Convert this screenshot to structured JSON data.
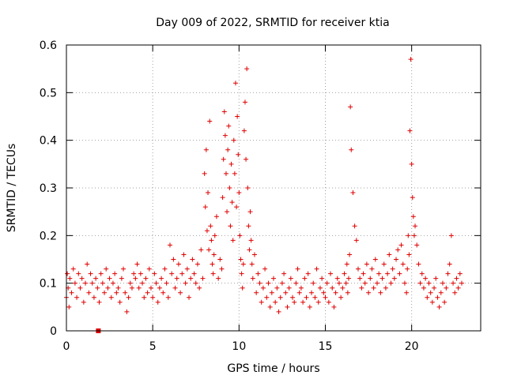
{
  "chart_data": {
    "type": "scatter",
    "title": "Day 009 of 2022, SRMTID for receiver ktia",
    "xlabel": "GPS time / hours",
    "ylabel": "SRMTID / TECUs",
    "xlim": [
      0,
      24
    ],
    "ylim": [
      0,
      0.6
    ],
    "xticks": [
      0,
      5,
      10,
      15,
      20
    ],
    "xtick_labels": [
      "0",
      "5",
      "10",
      "15",
      "20"
    ],
    "yticks": [
      0,
      0.1,
      0.2,
      0.3,
      0.4,
      0.5,
      0.6
    ],
    "ytick_labels": [
      "0",
      "0.1",
      "0.2",
      "0.3",
      "0.4",
      "0.5",
      "0.6"
    ],
    "grid": true,
    "marker": "plus",
    "color": "#e00000",
    "series": [
      {
        "name": "SRMTID",
        "x": [
          0.0,
          0.05,
          0.1,
          0.15,
          0.2,
          0.3,
          0.4,
          0.5,
          0.6,
          0.7,
          0.8,
          0.9,
          1.0,
          1.1,
          1.2,
          1.3,
          1.4,
          1.5,
          1.6,
          1.7,
          1.8,
          1.9,
          2.0,
          2.1,
          2.2,
          2.3,
          2.4,
          2.5,
          2.6,
          2.7,
          2.8,
          2.9,
          3.0,
          3.1,
          3.2,
          3.3,
          3.4,
          3.5,
          3.6,
          3.7,
          3.8,
          3.9,
          4.0,
          4.1,
          4.2,
          4.3,
          4.4,
          4.5,
          4.6,
          4.7,
          4.8,
          4.9,
          5.0,
          5.1,
          5.2,
          5.3,
          5.4,
          5.5,
          5.6,
          5.7,
          5.8,
          5.9,
          6.0,
          6.1,
          6.2,
          6.3,
          6.4,
          6.5,
          6.6,
          6.7,
          6.8,
          6.9,
          7.0,
          7.1,
          7.2,
          7.3,
          7.4,
          7.5,
          7.6,
          7.7,
          7.8,
          7.9,
          8.0,
          8.05,
          8.1,
          8.15,
          8.2,
          8.25,
          8.3,
          8.35,
          8.4,
          8.45,
          8.5,
          8.55,
          8.6,
          8.7,
          8.8,
          8.9,
          9.0,
          9.05,
          9.1,
          9.15,
          9.2,
          9.25,
          9.3,
          9.35,
          9.4,
          9.45,
          9.5,
          9.55,
          9.6,
          9.65,
          9.7,
          9.75,
          9.8,
          9.85,
          9.9,
          9.95,
          10.0,
          10.05,
          10.1,
          10.15,
          10.2,
          10.25,
          10.3,
          10.35,
          10.4,
          10.45,
          10.5,
          10.55,
          10.6,
          10.65,
          10.7,
          10.75,
          10.8,
          10.9,
          11.0,
          11.1,
          11.2,
          11.3,
          11.4,
          11.5,
          11.6,
          11.7,
          11.8,
          11.9,
          12.0,
          12.1,
          12.2,
          12.3,
          12.4,
          12.5,
          12.6,
          12.7,
          12.8,
          12.9,
          13.0,
          13.1,
          13.2,
          13.3,
          13.4,
          13.5,
          13.6,
          13.7,
          13.8,
          13.9,
          14.0,
          14.1,
          14.2,
          14.3,
          14.4,
          14.5,
          14.6,
          14.7,
          14.8,
          14.9,
          15.0,
          15.1,
          15.2,
          15.3,
          15.4,
          15.5,
          15.6,
          15.7,
          15.8,
          15.9,
          16.0,
          16.1,
          16.2,
          16.25,
          16.3,
          16.35,
          16.4,
          16.45,
          16.5,
          16.6,
          16.7,
          16.8,
          16.9,
          17.0,
          17.1,
          17.2,
          17.3,
          17.4,
          17.5,
          17.6,
          17.7,
          17.8,
          17.9,
          18.0,
          18.1,
          18.2,
          18.3,
          18.4,
          18.5,
          18.6,
          18.7,
          18.8,
          18.9,
          19.0,
          19.1,
          19.2,
          19.3,
          19.4,
          19.5,
          19.6,
          19.7,
          19.75,
          19.8,
          19.85,
          19.9,
          19.95,
          20.0,
          20.05,
          20.1,
          20.15,
          20.2,
          20.3,
          20.4,
          20.5,
          20.6,
          20.7,
          20.8,
          20.9,
          21.0,
          21.1,
          21.2,
          21.3,
          21.4,
          21.5,
          21.6,
          21.7,
          21.8,
          21.9,
          22.0,
          22.1,
          22.2,
          22.3,
          22.4,
          22.5,
          22.6,
          22.7,
          22.8,
          22.9
        ],
        "y": [
          0.07,
          0.12,
          0.09,
          0.05,
          0.11,
          0.08,
          0.13,
          0.1,
          0.07,
          0.12,
          0.09,
          0.11,
          0.06,
          0.1,
          0.14,
          0.08,
          0.12,
          0.1,
          0.07,
          0.11,
          0.09,
          0.06,
          0.12,
          0.1,
          0.08,
          0.13,
          0.09,
          0.11,
          0.07,
          0.1,
          0.12,
          0.08,
          0.09,
          0.06,
          0.11,
          0.13,
          0.08,
          0.04,
          0.07,
          0.1,
          0.09,
          0.12,
          0.11,
          0.14,
          0.09,
          0.12,
          0.1,
          0.07,
          0.11,
          0.08,
          0.13,
          0.09,
          0.07,
          0.12,
          0.1,
          0.06,
          0.09,
          0.11,
          0.08,
          0.13,
          0.1,
          0.07,
          0.18,
          0.12,
          0.15,
          0.09,
          0.11,
          0.14,
          0.08,
          0.12,
          0.16,
          0.1,
          0.13,
          0.07,
          0.11,
          0.15,
          0.12,
          0.1,
          0.14,
          0.09,
          0.17,
          0.11,
          0.33,
          0.26,
          0.38,
          0.21,
          0.29,
          0.17,
          0.44,
          0.22,
          0.19,
          0.14,
          0.12,
          0.16,
          0.2,
          0.24,
          0.11,
          0.15,
          0.13,
          0.28,
          0.36,
          0.46,
          0.41,
          0.33,
          0.25,
          0.38,
          0.43,
          0.3,
          0.22,
          0.35,
          0.27,
          0.19,
          0.4,
          0.33,
          0.52,
          0.26,
          0.45,
          0.37,
          0.29,
          0.2,
          0.15,
          0.12,
          0.09,
          0.14,
          0.42,
          0.48,
          0.36,
          0.55,
          0.3,
          0.22,
          0.17,
          0.25,
          0.19,
          0.14,
          0.11,
          0.16,
          0.08,
          0.12,
          0.1,
          0.06,
          0.09,
          0.13,
          0.07,
          0.1,
          0.05,
          0.08,
          0.11,
          0.06,
          0.09,
          0.04,
          0.07,
          0.1,
          0.12,
          0.08,
          0.05,
          0.09,
          0.11,
          0.07,
          0.06,
          0.1,
          0.13,
          0.08,
          0.09,
          0.06,
          0.11,
          0.07,
          0.12,
          0.05,
          0.08,
          0.1,
          0.07,
          0.13,
          0.06,
          0.09,
          0.11,
          0.08,
          0.07,
          0.1,
          0.06,
          0.12,
          0.09,
          0.05,
          0.08,
          0.11,
          0.1,
          0.07,
          0.09,
          0.12,
          0.1,
          0.14,
          0.08,
          0.11,
          0.16,
          0.47,
          0.38,
          0.29,
          0.22,
          0.19,
          0.13,
          0.11,
          0.09,
          0.12,
          0.1,
          0.14,
          0.08,
          0.11,
          0.13,
          0.09,
          0.15,
          0.1,
          0.12,
          0.08,
          0.11,
          0.14,
          0.09,
          0.12,
          0.16,
          0.1,
          0.13,
          0.11,
          0.15,
          0.17,
          0.12,
          0.18,
          0.14,
          0.1,
          0.08,
          0.13,
          0.2,
          0.16,
          0.42,
          0.57,
          0.35,
          0.28,
          0.24,
          0.2,
          0.22,
          0.18,
          0.14,
          0.1,
          0.12,
          0.09,
          0.11,
          0.07,
          0.1,
          0.08,
          0.06,
          0.09,
          0.11,
          0.07,
          0.05,
          0.08,
          0.1,
          0.06,
          0.09,
          0.12,
          0.14,
          0.2,
          0.1,
          0.08,
          0.11,
          0.09,
          0.12,
          0.1
        ]
      }
    ],
    "extra_marker": {
      "x": 1.85,
      "y": 0.0,
      "shape": "square"
    }
  }
}
